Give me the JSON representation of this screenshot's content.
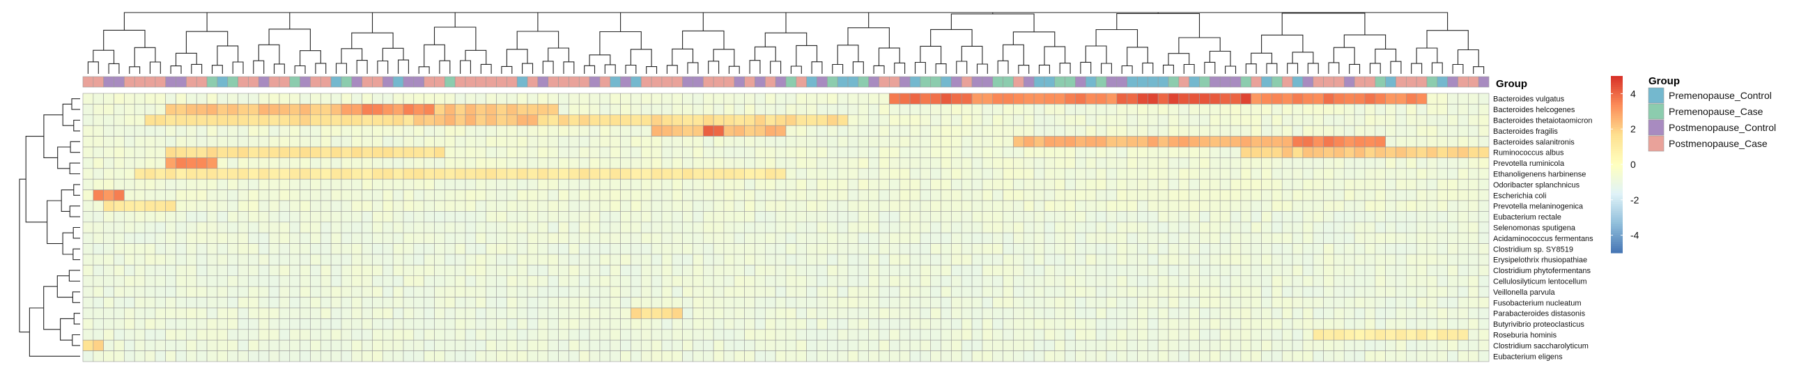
{
  "chart_data": {
    "type": "heatmap",
    "title": "",
    "rows": [
      "Bacteroides vulgatus",
      "Bacteroides helcogenes",
      "Bacteroides thetaiotaomicron",
      "Bacteroides fragilis",
      "Bacteroides salanitronis",
      "Ruminococcus albus",
      "Prevotella ruminicola",
      "Ethanoligenens harbinense",
      "Odoribacter splanchnicus",
      "Escherichia coli",
      "Prevotella melaninogenica",
      "Eubacterium rectale",
      "Selenomonas sputigena",
      "Acidaminococcus fermentans",
      "Clostridium sp. SY8519",
      "Erysipelothrix rhusiopathiae",
      "Clostridium phytofermentans",
      "Cellulosilyticum lentocellum",
      "Veillonella parvula",
      "Fusobacterium nucleatum",
      "Parabacteroides distasonis",
      "Butyrivibrio proteoclasticus",
      "Roseburia hominis",
      "Clostridium saccharolyticum",
      "Eubacterium eligens"
    ],
    "column_count": 136,
    "annotation": {
      "title": "Group",
      "levels": [
        {
          "name": "Premenopause_Control",
          "color": "#74B8CE"
        },
        {
          "name": "Premenopause_Case",
          "color": "#8CCCAE"
        },
        {
          "name": "Postmenopause_Control",
          "color": "#A88BC0"
        },
        {
          "name": "Postmenopause_Case",
          "color": "#E9A29A"
        }
      ],
      "column_groups": [
        3,
        3,
        2,
        2,
        3,
        3,
        3,
        3,
        2,
        2,
        3,
        3,
        1,
        0,
        1,
        3,
        3,
        2,
        3,
        3,
        1,
        2,
        3,
        3,
        0,
        1,
        2,
        3,
        3,
        2,
        0,
        2,
        2,
        3,
        3,
        1,
        3,
        3,
        3,
        3,
        3,
        3,
        0,
        3,
        2,
        3,
        3,
        3,
        3,
        2,
        3,
        0,
        2,
        0,
        3,
        3,
        3,
        3,
        2,
        2,
        3,
        3,
        3,
        2,
        3,
        2,
        3,
        2,
        1,
        3,
        0,
        2,
        1,
        0,
        0,
        1,
        2,
        3,
        3,
        2,
        0,
        1,
        1,
        0,
        2,
        3,
        2,
        2,
        1,
        1,
        3,
        2,
        0,
        0,
        1,
        1,
        2,
        0,
        1,
        2,
        2,
        0,
        0,
        0,
        0,
        1,
        3,
        0,
        1,
        2,
        2,
        2,
        1,
        3,
        0,
        1,
        3,
        0,
        2,
        3,
        3,
        3,
        2,
        3,
        3,
        1,
        0,
        3,
        3,
        3,
        1,
        0,
        2,
        3,
        3,
        2
      ]
    },
    "colorbar": {
      "range": [
        -5,
        5
      ],
      "ticks": [
        "4",
        "2",
        "0",
        "-2",
        "-4"
      ],
      "tick_values": [
        4,
        2,
        0,
        -2,
        -4
      ],
      "colors": [
        "#4575B4",
        "#91BFDB",
        "#E0F3F8",
        "#FFFFBF",
        "#FEE090",
        "#FC8D59",
        "#D73027"
      ]
    },
    "hot_spots": [
      {
        "row": 0,
        "from": 78,
        "to": 130,
        "value": 3.4
      },
      {
        "row": 0,
        "from": 79,
        "to": 86,
        "value": 4.0
      },
      {
        "row": 0,
        "from": 100,
        "to": 113,
        "value": 4.3
      },
      {
        "row": 0,
        "from": 120,
        "to": 126,
        "value": 3.6
      },
      {
        "row": 1,
        "from": 8,
        "to": 46,
        "value": 2.2
      },
      {
        "row": 1,
        "from": 25,
        "to": 34,
        "value": 3.2
      },
      {
        "row": 2,
        "from": 6,
        "to": 74,
        "value": 1.6
      },
      {
        "row": 2,
        "from": 32,
        "to": 44,
        "value": 2.2
      },
      {
        "row": 3,
        "from": 55,
        "to": 68,
        "value": 2.3
      },
      {
        "row": 3,
        "from": 60,
        "to": 62,
        "value": 3.9
      },
      {
        "row": 4,
        "from": 90,
        "to": 126,
        "value": 2.5
      },
      {
        "row": 4,
        "from": 117,
        "to": 126,
        "value": 3.5
      },
      {
        "row": 5,
        "from": 8,
        "to": 35,
        "value": 1.5
      },
      {
        "row": 5,
        "from": 112,
        "to": 136,
        "value": 2.0
      },
      {
        "row": 6,
        "from": 8,
        "to": 13,
        "value": 3.2
      },
      {
        "row": 7,
        "from": 5,
        "to": 68,
        "value": 1.1
      },
      {
        "row": 9,
        "from": 1,
        "to": 4,
        "value": 3.4
      },
      {
        "row": 10,
        "from": 2,
        "to": 9,
        "value": 1.2
      },
      {
        "row": 20,
        "from": 53,
        "to": 58,
        "value": 1.6
      },
      {
        "row": 22,
        "from": 119,
        "to": 134,
        "value": 0.8
      },
      {
        "row": 23,
        "from": 0,
        "to": 2,
        "value": 1.8
      }
    ]
  }
}
